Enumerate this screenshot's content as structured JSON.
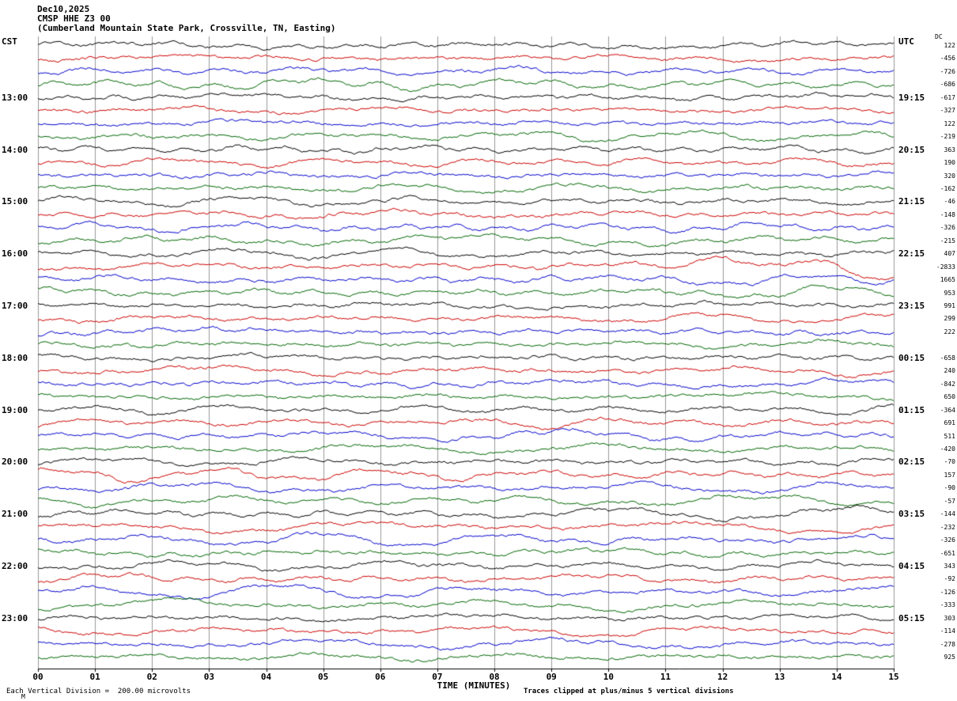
{
  "header": {
    "date": "Dec10,2025",
    "station": "CMSP HHE Z3 00",
    "location": "(Cumberland Mountain State Park, Crossville, TN, Easting)"
  },
  "axes": {
    "left_label": "CST",
    "right_label": "UTC",
    "dc_label": "DC",
    "left_times": [
      "13:00",
      "14:00",
      "15:00",
      "16:00",
      "17:00",
      "18:00",
      "19:00",
      "20:00",
      "21:00",
      "22:00",
      "23:00"
    ],
    "right_times": [
      "19:15",
      "20:15",
      "21:15",
      "22:15",
      "23:15",
      "00:15",
      "01:15",
      "02:15",
      "03:15",
      "04:15",
      "05:15"
    ],
    "dc_values": [
      122,
      -456,
      -726,
      -686,
      -617,
      -327,
      122,
      -219,
      363,
      190,
      320,
      -162,
      -46,
      -148,
      -326,
      -215,
      407,
      -2833,
      1665,
      953,
      991,
      299,
      222,
      "",
      -658,
      240,
      -842,
      650,
      -364,
      691,
      511,
      -420,
      -70,
      157,
      -90,
      -57,
      -144,
      -232,
      -326,
      -651,
      343,
      -92,
      -126,
      -333,
      303,
      -114,
      -278,
      925
    ],
    "x_ticks": [
      "00",
      "01",
      "02",
      "03",
      "04",
      "05",
      "06",
      "07",
      "08",
      "09",
      "10",
      "11",
      "12",
      "13",
      "14",
      "15"
    ],
    "x_label": "TIME (MINUTES)"
  },
  "footer": {
    "left": "Each Vertical Division =  200.00 microvolts",
    "right": "Traces clipped at plus/minus 5 vertical divisions",
    "corner_mark": "M"
  },
  "chart_data": {
    "type": "line",
    "title": "CMSP HHE Z3 00 helicorder — Cumberland Mountain State Park, Crossville, TN (East component), Dec10,2025",
    "num_traces": 48,
    "minutes_per_trace": 15,
    "x_range_minutes": [
      0,
      15
    ],
    "start_time_cst": "12:00",
    "rows_per_hour": 4,
    "first_hour_label_row": 4,
    "hour_labels_cst": [
      "13:00",
      "14:00",
      "15:00",
      "16:00",
      "17:00",
      "18:00",
      "19:00",
      "20:00",
      "21:00",
      "22:00",
      "23:00"
    ],
    "hour_labels_utc": [
      "19:15",
      "20:15",
      "21:15",
      "22:15",
      "23:15",
      "00:15",
      "01:15",
      "02:15",
      "03:15",
      "04:15",
      "05:15"
    ],
    "dc_offsets": [
      122,
      -456,
      -726,
      -686,
      -617,
      -327,
      122,
      -219,
      363,
      190,
      320,
      -162,
      -46,
      -148,
      -326,
      -215,
      407,
      -2833,
      1665,
      953,
      991,
      299,
      222,
      "",
      -658,
      240,
      -842,
      650,
      -364,
      691,
      511,
      -420,
      -70,
      157,
      -90,
      -57,
      -144,
      -232,
      -326,
      -651,
      343,
      -92,
      -126,
      -333,
      303,
      -114,
      -278,
      925
    ],
    "trace_color_cycle": [
      "#000000",
      "#cc0000",
      "#0000cc",
      "#006600"
    ],
    "grid_color": "#999999",
    "axis_color": "#000000",
    "grid_on": true,
    "event": {
      "row": 17,
      "start_minute": 11.3,
      "description": "Large-amplitude slow excursion on the 16:00 CST red trace from ~minute 11.3 to 15 (trace with DC offset -2833)"
    },
    "scale_note": "Each Vertical Division = 200.00 microvolts",
    "clip_note": "Traces clipped at plus/minus 5 vertical divisions",
    "waveform_note": "Continuous microseismic background noise on all 48 quarter-hour traces; rendered as seeded pseudo-random wander"
  }
}
